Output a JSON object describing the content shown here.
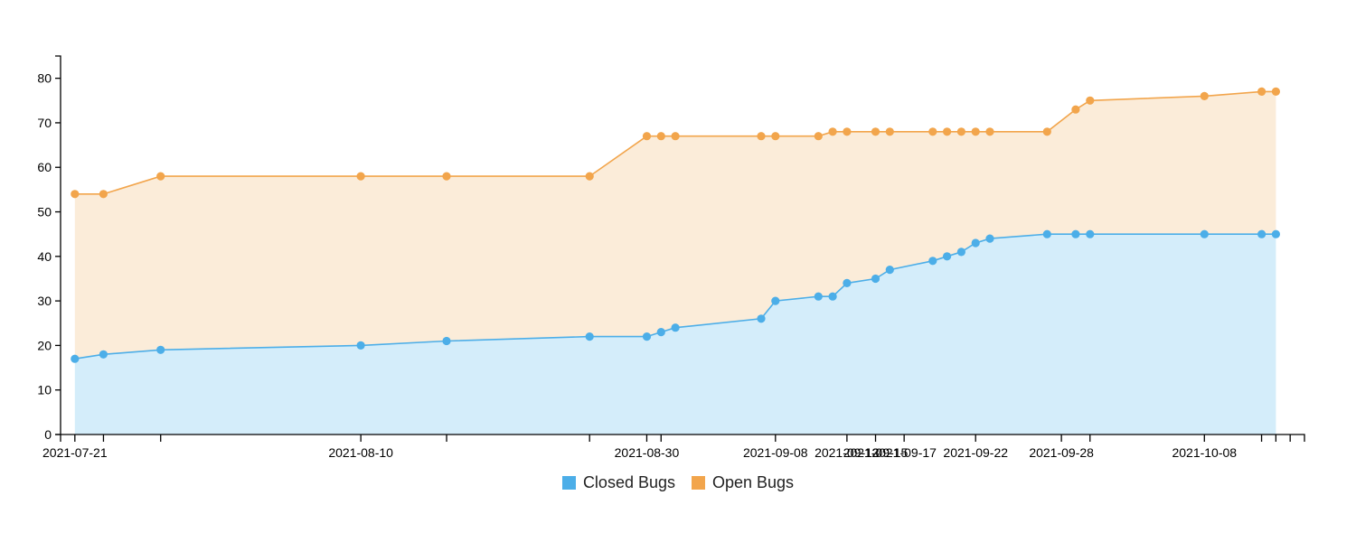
{
  "chart_data": {
    "type": "area",
    "title": "",
    "xlabel": "",
    "ylabel": "",
    "ylim": [
      0,
      85
    ],
    "y_ticks": [
      0,
      10,
      20,
      30,
      40,
      50,
      60,
      70,
      80
    ],
    "x_range": [
      "2021-07-20",
      "2021-10-15"
    ],
    "x_tick_dates": [
      "2021-07-21",
      "2021-07-23",
      "2021-07-27",
      "2021-08-10",
      "2021-08-16",
      "2021-08-26",
      "2021-08-30",
      "2021-08-31",
      "2021-09-08",
      "2021-09-13",
      "2021-09-15",
      "2021-09-17",
      "2021-09-22",
      "2021-09-28",
      "2021-09-30",
      "2021-10-08",
      "2021-10-12",
      "2021-10-13",
      "2021-10-14"
    ],
    "x_tick_labels": [
      "2021-07-21",
      "",
      "",
      "2021-08-10",
      "",
      "",
      "2021-08-30",
      "",
      "2021-09-08",
      "2021-09-13",
      "2021-09-15",
      "2021-09-17",
      "2021-09-22",
      "2021-09-28",
      "",
      "2021-10-08",
      "",
      "",
      ""
    ],
    "stacked": true,
    "grid": false,
    "legend_position": "bottom-center",
    "dates": [
      "2021-07-21",
      "2021-07-23",
      "2021-07-27",
      "2021-08-10",
      "2021-08-16",
      "2021-08-26",
      "2021-08-30",
      "2021-08-31",
      "2021-09-01",
      "2021-09-07",
      "2021-09-08",
      "2021-09-11",
      "2021-09-12",
      "2021-09-13",
      "2021-09-15",
      "2021-09-16",
      "2021-09-19",
      "2021-09-20",
      "2021-09-21",
      "2021-09-22",
      "2021-09-23",
      "2021-09-27",
      "2021-09-29",
      "2021-09-30",
      "2021-10-08",
      "2021-10-12",
      "2021-10-13"
    ],
    "series": [
      {
        "name": "Closed Bugs",
        "color": "#4caee8",
        "fill": "#d4edfa",
        "values": [
          17,
          18,
          19,
          20,
          21,
          22,
          22,
          23,
          24,
          26,
          30,
          31,
          31,
          34,
          35,
          37,
          39,
          40,
          41,
          43,
          44,
          45,
          45,
          45,
          45,
          45,
          45
        ]
      },
      {
        "name": "Open Bugs",
        "color": "#f2a54c",
        "fill": "#fbecd9",
        "values": [
          37,
          36,
          39,
          38,
          37,
          36,
          45,
          44,
          43,
          41,
          37,
          36,
          37,
          34,
          33,
          31,
          29,
          28,
          27,
          25,
          24,
          23,
          28,
          30,
          31,
          32,
          32
        ]
      }
    ]
  }
}
